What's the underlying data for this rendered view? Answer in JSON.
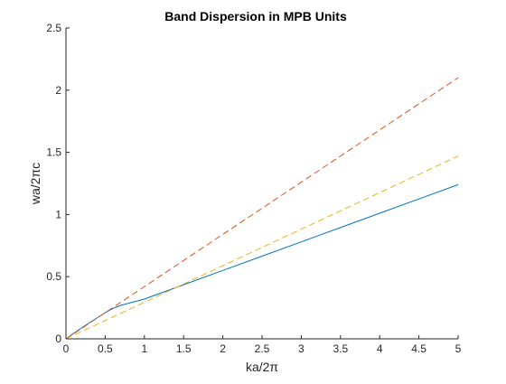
{
  "chart_data": {
    "type": "line",
    "title": "Band Dispersion in MPB Units",
    "xlabel": "ka/2π",
    "ylabel": "wa/2πc",
    "xlim": [
      0,
      5
    ],
    "ylim": [
      0,
      2.5
    ],
    "grid": false,
    "legend": "none",
    "x_ticks": [
      "0",
      "0.5",
      "1",
      "1.5",
      "2",
      "2.5",
      "3",
      "3.5",
      "4",
      "4.5",
      "5"
    ],
    "y_ticks": [
      "0",
      "0.5",
      "1",
      "1.5",
      "2",
      "2.5"
    ],
    "x_tick_values": [
      0,
      0.5,
      1,
      1.5,
      2,
      2.5,
      3,
      3.5,
      4,
      4.5,
      5
    ],
    "y_tick_values": [
      0,
      0.5,
      1,
      1.5,
      2,
      2.5
    ],
    "series": [
      {
        "style": "solid",
        "color": "#0072BD",
        "x": [
          0,
          0.1,
          0.2,
          0.3,
          0.4,
          0.5,
          0.6,
          0.7,
          1.0,
          1.5,
          2.0,
          2.5,
          3.0,
          3.5,
          4.0,
          4.5,
          5.0
        ],
        "y": [
          0,
          0.045,
          0.088,
          0.13,
          0.17,
          0.21,
          0.245,
          0.27,
          0.32,
          0.435,
          0.55,
          0.665,
          0.78,
          0.895,
          1.01,
          1.125,
          1.24
        ]
      },
      {
        "style": "dashed",
        "color": "#D95319",
        "x": [
          0,
          5
        ],
        "y": [
          0,
          2.1
        ]
      },
      {
        "style": "dashed",
        "color": "#EDB120",
        "x": [
          0,
          5
        ],
        "y": [
          0,
          1.47
        ]
      }
    ]
  }
}
